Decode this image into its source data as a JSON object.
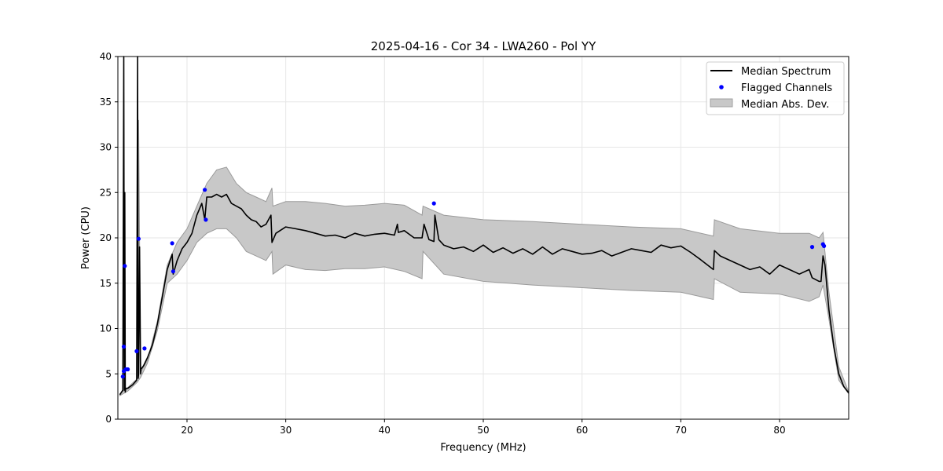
{
  "chart_data": {
    "type": "line",
    "title": "2025-04-16 - Cor 34 - LWA260 - Pol YY",
    "xlabel": "Frequency (MHz)",
    "ylabel": "Power (CPU)",
    "xlim": [
      13,
      87
    ],
    "ylim": [
      0,
      40
    ],
    "x_ticks": [
      20,
      30,
      40,
      50,
      60,
      70,
      80
    ],
    "y_ticks": [
      0,
      5,
      10,
      15,
      20,
      25,
      30,
      35,
      40
    ],
    "grid": true,
    "legend_position": "top-right",
    "legend": [
      "Median Spectrum",
      "Flagged Channels",
      "Median Abs. Dev."
    ],
    "series": [
      {
        "name": "Median Spectrum",
        "color": "#000000",
        "x": [
          13.2,
          13.5,
          13.6,
          13.65,
          13.7,
          13.75,
          13.8,
          14.0,
          14.5,
          14.9,
          15.0,
          15.05,
          15.1,
          15.2,
          15.3,
          15.35,
          15.4,
          15.6,
          16.0,
          16.5,
          17.0,
          17.5,
          18.0,
          18.5,
          18.6,
          19.0,
          19.5,
          20.0,
          20.5,
          21.0,
          21.5,
          21.8,
          22.0,
          22.5,
          23.0,
          23.5,
          24.0,
          24.5,
          25.0,
          25.5,
          26.0,
          26.5,
          27.0,
          27.5,
          28.0,
          28.5,
          28.6,
          29.0,
          30.0,
          31.0,
          32.0,
          33.0,
          34.0,
          35.0,
          36.0,
          37.0,
          38.0,
          39.0,
          40.0,
          41.0,
          41.3,
          41.4,
          42.0,
          43.0,
          43.8,
          44.0,
          44.5,
          45.0,
          45.1,
          45.5,
          46.0,
          47.0,
          48.0,
          49.0,
          50.0,
          51.0,
          52.0,
          53.0,
          54.0,
          55.0,
          56.0,
          57.0,
          58.0,
          59.0,
          60.0,
          61.0,
          62.0,
          63.0,
          64.0,
          65.0,
          66.0,
          67.0,
          68.0,
          69.0,
          70.0,
          71.0,
          72.0,
          73.3,
          73.4,
          74.0,
          75.0,
          76.0,
          77.0,
          78.0,
          79.0,
          80.0,
          81.0,
          82.0,
          83.0,
          83.3,
          84.0,
          84.2,
          84.4,
          84.6,
          85.0,
          85.5,
          86.0,
          86.5,
          87.0
        ],
        "values": [
          2.7,
          3.2,
          40.0,
          3.2,
          25.0,
          3.0,
          3.4,
          3.4,
          3.8,
          4.3,
          40.0,
          4.5,
          5.0,
          19.0,
          5.0,
          5.6,
          5.6,
          5.9,
          6.8,
          8.2,
          10.5,
          13.5,
          16.5,
          18.2,
          16.0,
          17.5,
          18.8,
          19.5,
          20.5,
          22.5,
          23.8,
          22.0,
          24.5,
          24.5,
          24.8,
          24.5,
          24.8,
          23.8,
          23.5,
          23.2,
          22.5,
          22.0,
          21.8,
          21.2,
          21.5,
          22.5,
          19.5,
          20.5,
          21.2,
          21.0,
          20.8,
          20.5,
          20.2,
          20.3,
          20.0,
          20.5,
          20.2,
          20.4,
          20.5,
          20.3,
          21.5,
          20.6,
          20.8,
          20.0,
          20.0,
          21.5,
          19.8,
          19.6,
          22.5,
          19.8,
          19.2,
          18.8,
          19.0,
          18.5,
          19.2,
          18.4,
          18.9,
          18.3,
          18.8,
          18.2,
          19.0,
          18.2,
          18.8,
          18.5,
          18.2,
          18.3,
          18.6,
          18.0,
          18.4,
          18.8,
          18.6,
          18.4,
          19.2,
          18.9,
          19.1,
          18.4,
          17.6,
          16.5,
          18.6,
          18.0,
          17.5,
          17.0,
          16.5,
          16.8,
          16.0,
          17.0,
          16.5,
          16.0,
          16.5,
          15.6,
          15.2,
          15.2,
          18.0,
          17.0,
          12.0,
          8.0,
          5.0,
          3.6,
          2.9
        ]
      },
      {
        "name": "Flagged Channels",
        "color": "#0000ff",
        "type": "scatter",
        "x": [
          13.5,
          13.6,
          13.7,
          13.8,
          14.0,
          13.6,
          14.9,
          15.1,
          15.7,
          18.5,
          18.6,
          21.8,
          21.9,
          45.0,
          83.3,
          84.4,
          84.5
        ],
        "values": [
          4.7,
          8.0,
          16.9,
          5.5,
          5.5,
          5.3,
          7.5,
          19.9,
          7.8,
          19.4,
          16.3,
          25.3,
          22.0,
          23.8,
          19.0,
          19.3,
          19.1
        ]
      },
      {
        "name": "Median Abs. Dev.",
        "color": "#c8c8c8",
        "type": "area",
        "x": [
          13.2,
          14.0,
          15.0,
          15.1,
          15.3,
          16.0,
          17.0,
          18.0,
          19.0,
          20.0,
          21.0,
          22.0,
          23.0,
          24.0,
          25.0,
          26.0,
          27.0,
          28.0,
          28.6,
          28.7,
          30.0,
          32.0,
          34.0,
          36.0,
          38.0,
          40.0,
          42.0,
          43.8,
          43.9,
          46.0,
          50.0,
          55.0,
          60.0,
          65.0,
          70.0,
          73.3,
          73.4,
          76.0,
          80.0,
          83.0,
          84.0,
          84.4,
          85.0,
          86.0,
          87.0
        ],
        "upper": [
          2.8,
          3.5,
          4.5,
          33.0,
          5.2,
          6.5,
          10.8,
          17.0,
          19.5,
          21.0,
          23.5,
          26.0,
          27.5,
          27.8,
          26.0,
          25.0,
          24.5,
          24.0,
          25.5,
          23.5,
          24.0,
          24.0,
          23.8,
          23.5,
          23.6,
          23.8,
          23.6,
          22.5,
          23.5,
          22.5,
          22.0,
          21.8,
          21.5,
          21.2,
          21.0,
          20.2,
          22.0,
          21.0,
          20.5,
          20.5,
          20.0,
          20.6,
          14.0,
          5.8,
          3.0
        ],
        "lower": [
          2.6,
          3.1,
          4.1,
          4.3,
          4.6,
          6.2,
          9.8,
          15.0,
          16.0,
          17.5,
          19.5,
          20.5,
          21.0,
          21.0,
          20.0,
          18.5,
          18.0,
          17.5,
          18.5,
          16.0,
          17.0,
          16.5,
          16.4,
          16.6,
          16.6,
          16.8,
          16.3,
          15.5,
          18.5,
          16.0,
          15.2,
          14.8,
          14.5,
          14.2,
          14.0,
          13.2,
          15.5,
          14.0,
          13.8,
          13.0,
          13.5,
          14.8,
          11.0,
          4.3,
          2.8
        ]
      }
    ]
  }
}
